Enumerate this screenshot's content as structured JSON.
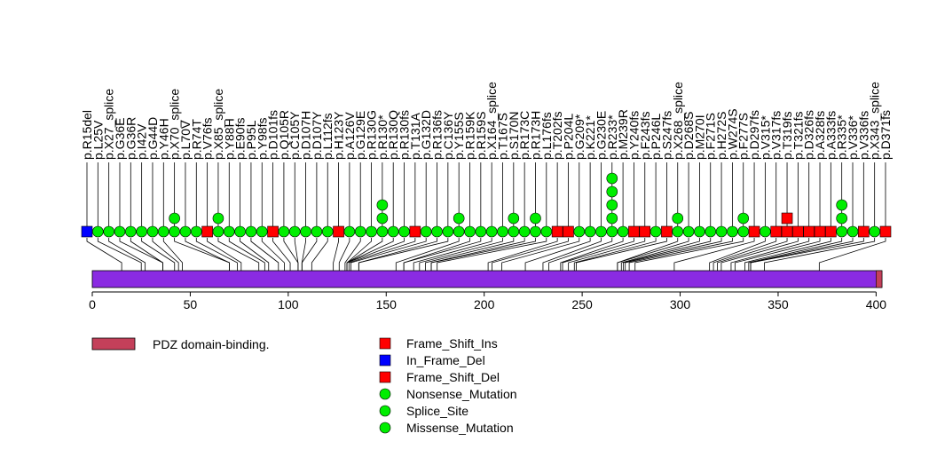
{
  "chart_data": {
    "type": "lollipop",
    "axis": {
      "xlim": [
        0,
        403
      ],
      "ticks": [
        0,
        50,
        100,
        150,
        200,
        250,
        300,
        350,
        400
      ]
    },
    "protein": {
      "length": 403,
      "color": "#8a2be2"
    },
    "domains": [
      {
        "label": "PDZ domain-binding.",
        "start": 400,
        "end": 403,
        "color": "#c4405a"
      }
    ],
    "mutation_types": {
      "Frame_Shift_Ins": {
        "color": "#ff0000",
        "shape": "square"
      },
      "In_Frame_Del": {
        "color": "#0000ff",
        "shape": "square"
      },
      "Frame_Shift_Del": {
        "color": "#ff0000",
        "shape": "square"
      },
      "Nonsense_Mutation": {
        "color": "#00ee00",
        "shape": "circle"
      },
      "Splice_Site": {
        "color": "#00ee00",
        "shape": "circle"
      },
      "Missense_Mutation": {
        "color": "#00ee00",
        "shape": "circle"
      }
    },
    "legend": [
      {
        "label": "Frame_Shift_Ins",
        "color": "#ff0000",
        "shape": "square"
      },
      {
        "label": "In_Frame_Del",
        "color": "#0000ff",
        "shape": "square"
      },
      {
        "label": "Frame_Shift_Del",
        "color": "#ff0000",
        "shape": "square"
      },
      {
        "label": "Nonsense_Mutation",
        "color": "#00ee00",
        "shape": "circle"
      },
      {
        "label": "Splice_Site",
        "color": "#00ee00",
        "shape": "circle"
      },
      {
        "label": "Missense_Mutation",
        "color": "#00ee00",
        "shape": "circle"
      }
    ],
    "mutations": [
      {
        "label": "p.R15del",
        "pos": 15,
        "types": [
          "In_Frame_Del"
        ]
      },
      {
        "label": "p.L25V",
        "pos": 25,
        "types": [
          "Missense_Mutation"
        ]
      },
      {
        "label": "p.X27_splice",
        "pos": 27,
        "types": [
          "Splice_Site"
        ]
      },
      {
        "label": "p.G36E",
        "pos": 36,
        "types": [
          "Missense_Mutation"
        ]
      },
      {
        "label": "p.G36R",
        "pos": 36,
        "types": [
          "Missense_Mutation"
        ]
      },
      {
        "label": "p.I42V",
        "pos": 42,
        "types": [
          "Missense_Mutation"
        ]
      },
      {
        "label": "p.G44D",
        "pos": 44,
        "types": [
          "Missense_Mutation"
        ]
      },
      {
        "label": "p.Y46H",
        "pos": 46,
        "types": [
          "Missense_Mutation"
        ]
      },
      {
        "label": "p.X70_splice",
        "pos": 70,
        "types": [
          "Splice_Site",
          "Splice_Site"
        ]
      },
      {
        "label": "p.L70V",
        "pos": 70,
        "types": [
          "Missense_Mutation"
        ]
      },
      {
        "label": "p.R74T",
        "pos": 74,
        "types": [
          "Missense_Mutation"
        ]
      },
      {
        "label": "p.V76fs",
        "pos": 76,
        "types": [
          "Frame_Shift_Del"
        ]
      },
      {
        "label": "p.X85_splice",
        "pos": 85,
        "types": [
          "Splice_Site",
          "Splice_Site"
        ]
      },
      {
        "label": "p.Y88H",
        "pos": 88,
        "types": [
          "Missense_Mutation"
        ]
      },
      {
        "label": "p.E90fs",
        "pos": 90,
        "types": [
          "Missense_Mutation"
        ]
      },
      {
        "label": "p.P95L",
        "pos": 95,
        "types": [
          "Missense_Mutation"
        ]
      },
      {
        "label": "p.Y98fs",
        "pos": 98,
        "types": [
          "Missense_Mutation"
        ]
      },
      {
        "label": "p.D101fs",
        "pos": 101,
        "types": [
          "Frame_Shift_Del"
        ]
      },
      {
        "label": "p.Q105R",
        "pos": 105,
        "types": [
          "Missense_Mutation"
        ]
      },
      {
        "label": "p.C105Y",
        "pos": 105,
        "types": [
          "Missense_Mutation"
        ]
      },
      {
        "label": "p.D107H",
        "pos": 107,
        "types": [
          "Missense_Mutation"
        ]
      },
      {
        "label": "p.D107Y",
        "pos": 107,
        "types": [
          "Missense_Mutation"
        ]
      },
      {
        "label": "p.L112fs",
        "pos": 112,
        "types": [
          "Missense_Mutation"
        ]
      },
      {
        "label": "p.H123Y",
        "pos": 123,
        "types": [
          "Frame_Shift_Del"
        ]
      },
      {
        "label": "p.A126V",
        "pos": 126,
        "types": [
          "Missense_Mutation"
        ]
      },
      {
        "label": "p.G129E",
        "pos": 129,
        "types": [
          "Missense_Mutation"
        ]
      },
      {
        "label": "p.R130G",
        "pos": 130,
        "types": [
          "Missense_Mutation"
        ]
      },
      {
        "label": "p.R130*",
        "pos": 130,
        "types": [
          "Nonsense_Mutation",
          "Nonsense_Mutation",
          "Nonsense_Mutation"
        ]
      },
      {
        "label": "p.R130Q",
        "pos": 130,
        "types": [
          "Missense_Mutation"
        ]
      },
      {
        "label": "p.R130fs",
        "pos": 130,
        "types": [
          "Missense_Mutation"
        ]
      },
      {
        "label": "p.T131A",
        "pos": 131,
        "types": [
          "Frame_Shift_Del"
        ]
      },
      {
        "label": "p.G132D",
        "pos": 132,
        "types": [
          "Missense_Mutation"
        ]
      },
      {
        "label": "p.R136fs",
        "pos": 136,
        "types": [
          "Missense_Mutation"
        ]
      },
      {
        "label": "p.C136Y",
        "pos": 136,
        "types": [
          "Missense_Mutation"
        ]
      },
      {
        "label": "p.Y155S",
        "pos": 155,
        "types": [
          "Missense_Mutation",
          "Missense_Mutation"
        ]
      },
      {
        "label": "p.R159K",
        "pos": 159,
        "types": [
          "Missense_Mutation"
        ]
      },
      {
        "label": "p.R159S",
        "pos": 159,
        "types": [
          "Missense_Mutation"
        ]
      },
      {
        "label": "p.X164_splice",
        "pos": 164,
        "types": [
          "Splice_Site"
        ]
      },
      {
        "label": "p.T167S",
        "pos": 167,
        "types": [
          "Missense_Mutation"
        ]
      },
      {
        "label": "p.S170N",
        "pos": 170,
        "types": [
          "Missense_Mutation",
          "Missense_Mutation"
        ]
      },
      {
        "label": "p.R173C",
        "pos": 173,
        "types": [
          "Missense_Mutation"
        ]
      },
      {
        "label": "p.R173H",
        "pos": 173,
        "types": [
          "Missense_Mutation",
          "Missense_Mutation"
        ]
      },
      {
        "label": "p.L176fs",
        "pos": 176,
        "types": [
          "Missense_Mutation"
        ]
      },
      {
        "label": "p.T202fs",
        "pos": 202,
        "types": [
          "Frame_Shift_Del"
        ]
      },
      {
        "label": "p.P204L",
        "pos": 204,
        "types": [
          "Frame_Shift_Del"
        ]
      },
      {
        "label": "p.G209*",
        "pos": 209,
        "types": [
          "Nonsense_Mutation"
        ]
      },
      {
        "label": "p.K221*",
        "pos": 221,
        "types": [
          "Nonsense_Mutation"
        ]
      },
      {
        "label": "p.G230E",
        "pos": 230,
        "types": [
          "Missense_Mutation"
        ]
      },
      {
        "label": "p.R233*",
        "pos": 233,
        "types": [
          "Nonsense_Mutation",
          "Nonsense_Mutation",
          "Nonsense_Mutation",
          "Nonsense_Mutation",
          "Nonsense_Mutation"
        ]
      },
      {
        "label": "p.M239R",
        "pos": 239,
        "types": [
          "Missense_Mutation"
        ]
      },
      {
        "label": "p.Y240fs",
        "pos": 240,
        "types": [
          "Frame_Shift_Del"
        ]
      },
      {
        "label": "p.F243fs",
        "pos": 243,
        "types": [
          "Frame_Shift_Del"
        ]
      },
      {
        "label": "p.P246L",
        "pos": 246,
        "types": [
          "Missense_Mutation"
        ]
      },
      {
        "label": "p.S247fs",
        "pos": 247,
        "types": [
          "Frame_Shift_Del"
        ]
      },
      {
        "label": "p.X268_splice",
        "pos": 268,
        "types": [
          "Splice_Site",
          "Splice_Site"
        ]
      },
      {
        "label": "p.D268S",
        "pos": 268,
        "types": [
          "Missense_Mutation"
        ]
      },
      {
        "label": "p.M270I",
        "pos": 270,
        "types": [
          "Missense_Mutation"
        ]
      },
      {
        "label": "p.F271S",
        "pos": 271,
        "types": [
          "Missense_Mutation"
        ]
      },
      {
        "label": "p.H272S",
        "pos": 272,
        "types": [
          "Missense_Mutation"
        ]
      },
      {
        "label": "p.W274S",
        "pos": 274,
        "types": [
          "Missense_Mutation"
        ]
      },
      {
        "label": "p.F277S",
        "pos": 277,
        "types": [
          "Missense_Mutation",
          "Missense_Mutation"
        ]
      },
      {
        "label": "p.D297fs",
        "pos": 297,
        "types": [
          "Frame_Shift_Del"
        ]
      },
      {
        "label": "p.V315*",
        "pos": 315,
        "types": [
          "Nonsense_Mutation"
        ]
      },
      {
        "label": "p.V317fs",
        "pos": 317,
        "types": [
          "Frame_Shift_Del"
        ]
      },
      {
        "label": "p.T319fs",
        "pos": 319,
        "types": [
          "Frame_Shift_Del",
          "Frame_Shift_Ins"
        ]
      },
      {
        "label": "p.T321fs",
        "pos": 321,
        "types": [
          "Frame_Shift_Del"
        ]
      },
      {
        "label": "p.D326fs",
        "pos": 326,
        "types": [
          "Frame_Shift_Del"
        ]
      },
      {
        "label": "p.A328fs",
        "pos": 328,
        "types": [
          "Frame_Shift_Del"
        ]
      },
      {
        "label": "p.A333fs",
        "pos": 333,
        "types": [
          "Frame_Shift_Del"
        ]
      },
      {
        "label": "p.R335*",
        "pos": 335,
        "types": [
          "Nonsense_Mutation",
          "Nonsense_Mutation",
          "Nonsense_Mutation"
        ]
      },
      {
        "label": "p.V336*",
        "pos": 336,
        "types": [
          "Nonsense_Mutation"
        ]
      },
      {
        "label": "p.V336fs",
        "pos": 336,
        "types": [
          "Frame_Shift_Del"
        ]
      },
      {
        "label": "p.X343_splice",
        "pos": 343,
        "types": [
          "Splice_Site"
        ]
      },
      {
        "label": "p.D371fs",
        "pos": 371,
        "types": [
          "Frame_Shift_Del"
        ]
      }
    ]
  }
}
